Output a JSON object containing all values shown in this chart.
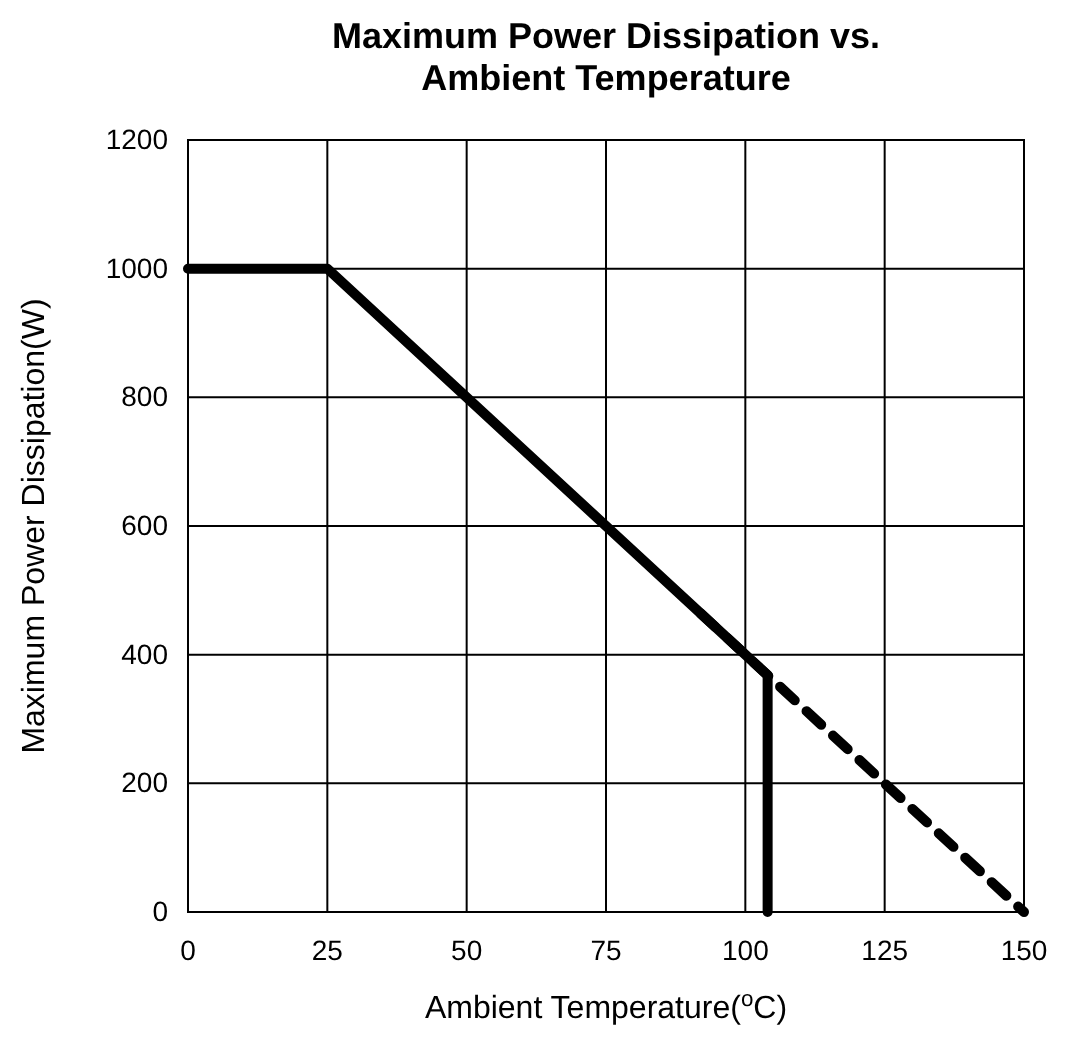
{
  "chart_data": {
    "type": "line",
    "title": "Maximum Power Dissipation vs. Ambient Temperature",
    "xlabel": "Ambient Temperature($^{o}$C)",
    "ylabel": "Maximum Power Dissipation(W)",
    "xlim": [
      0,
      150
    ],
    "xticks": [
      0,
      25,
      50,
      75,
      100,
      125,
      150
    ],
    "ylim": [
      0,
      1200
    ],
    "yticks": [
      0,
      200,
      400,
      600,
      800,
      1000,
      1200
    ],
    "grid": true,
    "marker": "none",
    "series": [
      {
        "color": "#000000",
        "line_style": "solid",
        "x": [
          0,
          25,
          104,
          104
        ],
        "values": [
          1000,
          1000,
          368,
          0
        ]
      },
      {
        "color": "#000000",
        "line_style": "dashed",
        "x": [
          92,
          150
        ],
        "values": [
          464,
          0
        ]
      }
    ]
  }
}
